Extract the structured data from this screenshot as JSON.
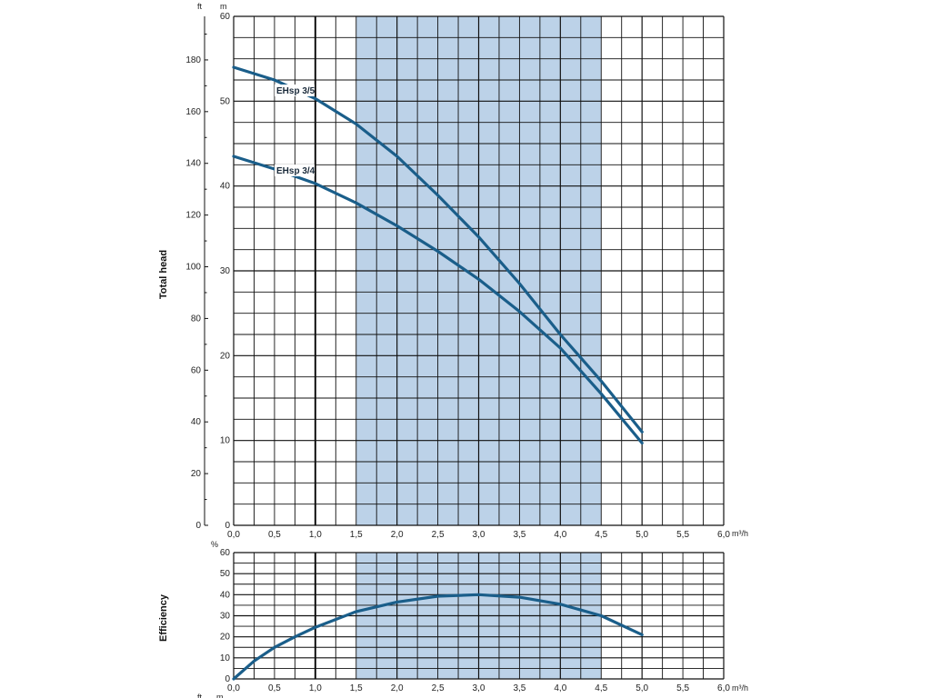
{
  "chart_data": [
    {
      "type": "line",
      "ylabel": "Total head",
      "y_unit_left": "ft",
      "y_unit_right": "m",
      "x_unit": "m³/h",
      "xlim": [
        0,
        6
      ],
      "ylim_m": [
        0,
        60
      ],
      "ylim_ft": [
        0,
        196.85
      ],
      "x_ticks": [
        "0,0",
        "0,5",
        "1,0",
        "1,5",
        "2,0",
        "2,5",
        "3,0",
        "3,5",
        "4,0",
        "4,5",
        "5,0",
        "5,5",
        "6,0"
      ],
      "y_ticks_m": [
        "0",
        "10",
        "20",
        "30",
        "40",
        "50",
        "60"
      ],
      "y_ticks_ft": [
        "0",
        "20",
        "40",
        "60",
        "80",
        "100",
        "120",
        "140",
        "160",
        "180"
      ],
      "shaded_range": [
        1.5,
        4.5
      ],
      "grid": true,
      "series": [
        {
          "name": "EHsp 3/5",
          "x": [
            0,
            0.5,
            1.0,
            1.5,
            2.0,
            2.5,
            3.0,
            3.5,
            4.0,
            4.5,
            5.0
          ],
          "y": [
            54,
            52.5,
            50.3,
            47.3,
            43.5,
            38.9,
            34,
            28.5,
            22.5,
            17,
            11
          ]
        },
        {
          "name": "EHsp 3/4",
          "x": [
            0,
            0.5,
            1.0,
            1.5,
            2.0,
            2.5,
            3.0,
            3.5,
            4.0,
            4.5,
            5.0
          ],
          "y": [
            43.5,
            42,
            40.3,
            38,
            35.3,
            32.3,
            29,
            25.2,
            20.9,
            15.5,
            9.7
          ]
        }
      ]
    },
    {
      "type": "line",
      "ylabel": "Efficiency",
      "y_unit": "%",
      "x_unit": "m³/h",
      "xlim": [
        0,
        6
      ],
      "ylim": [
        0,
        60
      ],
      "x_ticks": [
        "0,0",
        "0,5",
        "1,0",
        "1,5",
        "2,0",
        "2,5",
        "3,0",
        "3,5",
        "4,0",
        "4,5",
        "5,0",
        "5,5",
        "6,0"
      ],
      "y_ticks": [
        "0",
        "10",
        "20",
        "30",
        "40",
        "50",
        "60"
      ],
      "shaded_range": [
        1.5,
        4.5
      ],
      "grid": true,
      "series": [
        {
          "x": [
            0,
            0.25,
            0.5,
            0.75,
            1.0,
            1.5,
            2.0,
            2.5,
            3.0,
            3.5,
            4.0,
            4.5,
            5.0
          ],
          "y": [
            0,
            8.5,
            15,
            20,
            24.5,
            32,
            36.5,
            39.3,
            40,
            38.8,
            35.5,
            30,
            21
          ]
        }
      ]
    }
  ],
  "labels": {
    "head_axis": "Total head",
    "efficiency_axis": "Efficiency",
    "unit_ft": "ft",
    "unit_m": "m",
    "unit_pct": "%",
    "unit_flow": "m³/h",
    "curve_a": "EHsp 3/5",
    "curve_b": "EHsp 3/4"
  },
  "colors": {
    "curve": "#1a5e8a",
    "shade": "#bcd2e8",
    "grid": "#111111"
  }
}
